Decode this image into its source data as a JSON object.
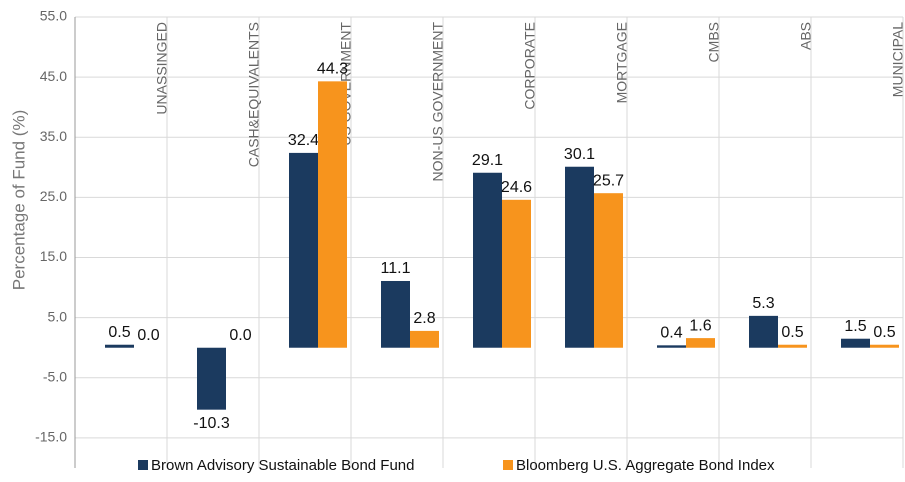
{
  "chart_data": {
    "type": "bar",
    "y_axis_label": "Percentage of Fund (%)",
    "categories": [
      "UNASSINGED",
      "CASH&EQUIVALENTS",
      "US GOVERNMENT",
      "NON-US GOVERNMENT",
      "CORPORATE",
      "MORTGAGE",
      "CMBS",
      "ABS",
      "MUNICIPAL"
    ],
    "series": [
      {
        "name": "Brown Advisory Sustainable Bond Fund",
        "color": "#1b3a5f",
        "values": [
          0.5,
          -10.3,
          32.4,
          11.1,
          29.1,
          30.1,
          0.4,
          5.3,
          1.5
        ],
        "value_labels": [
          "0.5",
          "-10.3",
          "32.4",
          "11.1",
          "29.1",
          "30.1",
          "0.4",
          "5.3",
          "1.5"
        ]
      },
      {
        "name": "Bloomberg U.S. Aggregate Bond Index",
        "color": "#f7941d",
        "values": [
          0.0,
          0.0,
          44.3,
          2.8,
          24.6,
          25.7,
          1.6,
          0.5,
          0.5
        ],
        "value_labels": [
          "0.0",
          "0.0",
          "44.3",
          "2.8",
          "24.6",
          "25.7",
          "1.6",
          "0.5",
          "0.5"
        ]
      }
    ],
    "ylim": [
      -20,
      55
    ],
    "yticks": [
      {
        "value": -15,
        "label": "-15.0"
      },
      {
        "value": -5,
        "label": "-5.0"
      },
      {
        "value": 5,
        "label": "5.0"
      },
      {
        "value": 15,
        "label": "15.0"
      },
      {
        "value": 25,
        "label": "25.0"
      },
      {
        "value": 35,
        "label": "35.0"
      },
      {
        "value": 45,
        "label": "45.0"
      },
      {
        "value": 55,
        "label": "55.0"
      }
    ],
    "grid": true,
    "legend": "bottom"
  }
}
